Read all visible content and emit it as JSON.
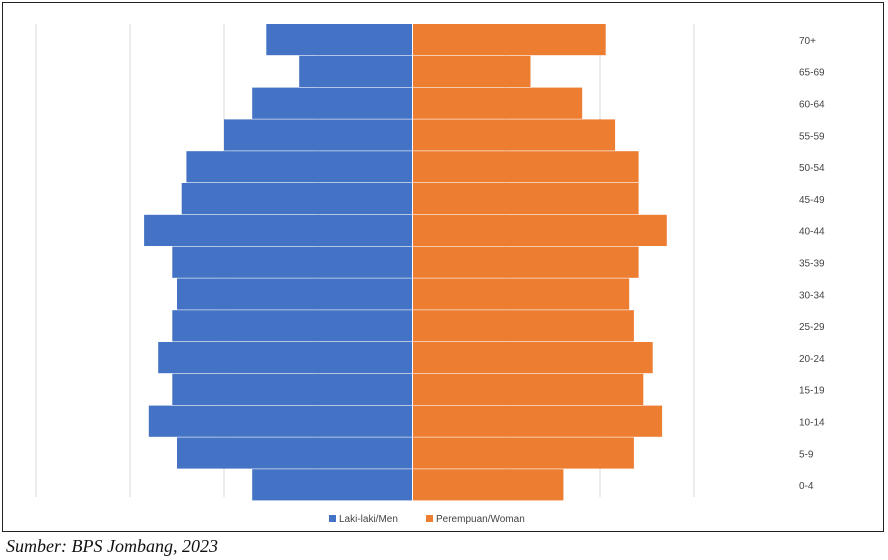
{
  "chart_data": {
    "type": "bar",
    "orientation": "horizontal-population-pyramid",
    "categories": [
      "0-4",
      "5-9",
      "10-14",
      "15-19",
      "20-24",
      "25-29",
      "30-34",
      "35-39",
      "40-44",
      "45-49",
      "50-54",
      "55-59",
      "60-64",
      "65-69",
      "70+"
    ],
    "series": [
      {
        "name": "Laki-laki/Men",
        "color": "#4472C4",
        "values": [
          34,
          50,
          56,
          51,
          54,
          51,
          50,
          51,
          57,
          49,
          48,
          40,
          34,
          24,
          31
        ]
      },
      {
        "name": "Perempuan/Woman",
        "color": "#ED7D31",
        "values": [
          32,
          47,
          53,
          49,
          51,
          47,
          46,
          48,
          54,
          48,
          48,
          43,
          36,
          25,
          41
        ]
      }
    ],
    "xlim": [
      -80,
      100
    ],
    "grid": true,
    "legend": "bottom",
    "category_label_position": "right"
  },
  "caption": "Sumber: BPS Jombang, 2023"
}
